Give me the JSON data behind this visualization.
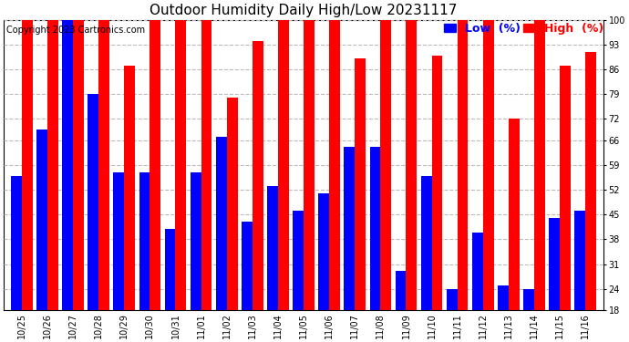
{
  "title": "Outdoor Humidity Daily High/Low 20231117",
  "copyright": "Copyright 2023 Cartronics.com",
  "legend_low": "Low  (%)",
  "legend_high": "High  (%)",
  "dates": [
    "10/25",
    "10/26",
    "10/27",
    "10/28",
    "10/29",
    "10/30",
    "10/31",
    "11/01",
    "11/02",
    "11/03",
    "11/04",
    "11/05",
    "11/06",
    "11/07",
    "11/08",
    "11/09",
    "11/10",
    "11/11",
    "11/12",
    "11/13",
    "11/14",
    "11/15",
    "11/16"
  ],
  "high": [
    100,
    100,
    100,
    100,
    87,
    100,
    100,
    100,
    78,
    94,
    100,
    100,
    100,
    89,
    100,
    100,
    90,
    100,
    100,
    72,
    100,
    87,
    91
  ],
  "low": [
    56,
    69,
    100,
    79,
    57,
    57,
    41,
    57,
    67,
    43,
    53,
    46,
    51,
    64,
    64,
    29,
    56,
    24,
    40,
    25,
    24,
    44,
    46
  ],
  "ylim": [
    18,
    100
  ],
  "yticks": [
    18,
    24,
    31,
    38,
    45,
    52,
    59,
    66,
    72,
    79,
    86,
    93,
    100
  ],
  "bar_color_high": "#ff0000",
  "bar_color_low": "#0000ff",
  "background_color": "#ffffff",
  "title_fontsize": 11,
  "copyright_fontsize": 7,
  "legend_fontsize": 9,
  "tick_fontsize": 7,
  "grid_color": "#bbbbbb",
  "grid_linestyle": "--",
  "bar_width": 0.42
}
